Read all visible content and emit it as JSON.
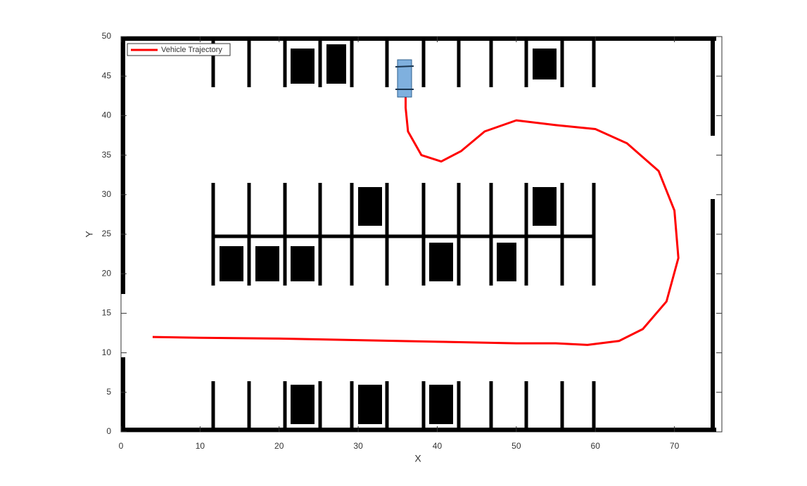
{
  "chart_data": {
    "type": "line",
    "xlabel": "X",
    "ylabel": "Y",
    "x": [
      4,
      10,
      20,
      30,
      40,
      50,
      55,
      59,
      63,
      66,
      69,
      70.5,
      70,
      68,
      64,
      60,
      55,
      50,
      46,
      43,
      40.5,
      38,
      36.3,
      36,
      36
    ],
    "series": [
      {
        "name": "Vehicle Trajectory",
        "color": "#ff0000",
        "values": [
          12,
          11.9,
          11.8,
          11.6,
          11.4,
          11.2,
          11.2,
          11,
          11.5,
          13,
          16.5,
          22,
          28,
          33,
          36.5,
          38.3,
          38.8,
          39.4,
          38,
          35.5,
          34.2,
          35,
          38,
          41,
          43.5
        ]
      }
    ],
    "xlim": [
      0,
      76
    ],
    "ylim": [
      0,
      50
    ],
    "xticks": [
      0,
      10,
      20,
      30,
      40,
      50,
      60,
      70
    ],
    "yticks": [
      0,
      5,
      10,
      15,
      20,
      25,
      30,
      35,
      40,
      45,
      50
    ],
    "legend": "top-left"
  }
}
